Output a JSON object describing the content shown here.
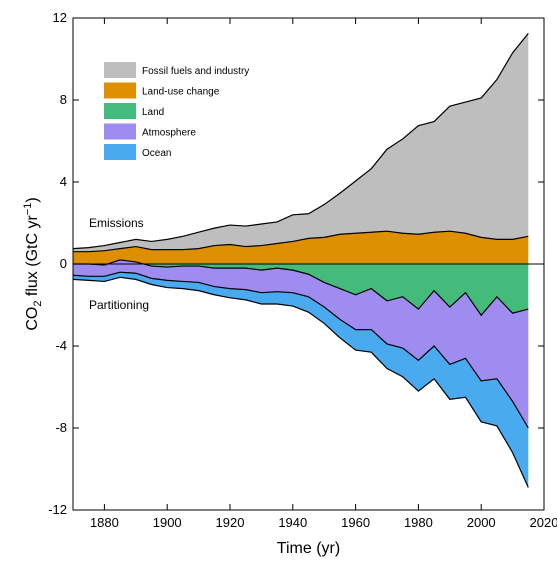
{
  "chart_data": {
    "type": "area",
    "title": "",
    "xlabel": "Time (yr)",
    "ylabel_main": "CO",
    "ylabel_sub": "2",
    "ylabel_mid": " flux (GtC yr",
    "ylabel_sup": "−1",
    "ylabel_end": ")",
    "xlim": [
      1870,
      2020
    ],
    "ylim": [
      -12,
      12
    ],
    "xticks": [
      1880,
      1900,
      1920,
      1940,
      1960,
      1980,
      2000,
      2020
    ],
    "yticks": [
      -12,
      -8,
      -4,
      0,
      4,
      8,
      12
    ],
    "legend_position": "top-left",
    "annotations": [
      {
        "text": "Emissions",
        "x": 1875,
        "y": 1.8
      },
      {
        "text": "Partitioning",
        "x": 1875,
        "y": -2.1
      }
    ],
    "x": [
      1870,
      1875,
      1880,
      1885,
      1890,
      1895,
      1900,
      1905,
      1910,
      1915,
      1920,
      1925,
      1930,
      1935,
      1940,
      1945,
      1950,
      1955,
      1960,
      1965,
      1970,
      1975,
      1980,
      1985,
      1990,
      1995,
      2000,
      2005,
      2010,
      2015
    ],
    "series": [
      {
        "name": "Fossil fuels and industry",
        "color": "#bebebe",
        "values": [
          0.15,
          0.2,
          0.25,
          0.3,
          0.35,
          0.4,
          0.5,
          0.65,
          0.8,
          0.85,
          0.95,
          1.0,
          1.05,
          1.05,
          1.3,
          1.2,
          1.6,
          2.0,
          2.55,
          3.1,
          4.0,
          4.6,
          5.3,
          5.4,
          6.1,
          6.4,
          6.8,
          7.8,
          9.1,
          9.9
        ]
      },
      {
        "name": "Land-use change",
        "color": "#dd8f00",
        "values": [
          0.6,
          0.6,
          0.65,
          0.75,
          0.85,
          0.7,
          0.7,
          0.7,
          0.75,
          0.9,
          0.95,
          0.85,
          0.9,
          1.0,
          1.1,
          1.25,
          1.3,
          1.45,
          1.5,
          1.55,
          1.6,
          1.5,
          1.45,
          1.55,
          1.6,
          1.5,
          1.3,
          1.2,
          1.2,
          1.35
        ]
      },
      {
        "name": "Land",
        "color": "#45bb7b",
        "values": [
          0.0,
          0.0,
          -0.05,
          0.2,
          0.1,
          -0.1,
          -0.15,
          -0.1,
          -0.1,
          -0.2,
          -0.2,
          -0.2,
          -0.3,
          -0.2,
          -0.3,
          -0.5,
          -0.9,
          -1.2,
          -1.5,
          -1.2,
          -1.8,
          -1.6,
          -2.2,
          -1.3,
          -2.1,
          -1.4,
          -2.5,
          -1.6,
          -2.4,
          -2.2
        ]
      },
      {
        "name": "Atmosphere",
        "color": "#9e8cf0",
        "values": [
          -0.55,
          -0.6,
          -0.55,
          -0.6,
          -0.55,
          -0.6,
          -0.65,
          -0.75,
          -0.8,
          -0.9,
          -1.0,
          -1.05,
          -1.1,
          -1.15,
          -1.1,
          -1.1,
          -1.2,
          -1.5,
          -1.7,
          -2.0,
          -2.1,
          -2.5,
          -2.5,
          -2.7,
          -2.8,
          -3.2,
          -3.2,
          -4.0,
          -4.3,
          -5.8
        ]
      },
      {
        "name": "Ocean",
        "color": "#4aaaf0",
        "values": [
          -0.2,
          -0.2,
          -0.25,
          -0.25,
          -0.3,
          -0.3,
          -0.35,
          -0.35,
          -0.4,
          -0.4,
          -0.45,
          -0.5,
          -0.55,
          -0.6,
          -0.65,
          -0.75,
          -0.8,
          -0.9,
          -1.0,
          -1.1,
          -1.2,
          -1.4,
          -1.5,
          -1.6,
          -1.7,
          -1.9,
          -2.0,
          -2.3,
          -2.5,
          -2.9
        ]
      }
    ]
  }
}
